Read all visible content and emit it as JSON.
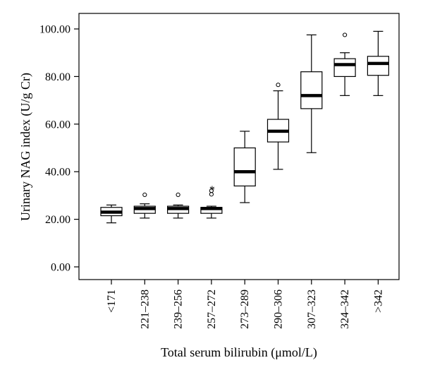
{
  "chart_data": {
    "type": "box",
    "xlabel": "Total serum bilirubin (μmol/L)",
    "ylabel": "Urinary NAG index (U/g Cr)",
    "ylim": [
      -5,
      105
    ],
    "yticks": [
      "0.00",
      "20.00",
      "40.00",
      "60.00",
      "80.00",
      "100.00"
    ],
    "ytick_values": [
      0,
      20,
      40,
      60,
      80,
      100
    ],
    "categories": [
      "<171",
      "221–238",
      "239–256",
      "257–272",
      "273–289",
      "290–306",
      "307–323",
      "324–342",
      ">342"
    ],
    "boxes": [
      {
        "min": 18.5,
        "q1": 21.5,
        "median": 23.0,
        "q3": 25.0,
        "max": 26.0,
        "outliers": [],
        "extremes": []
      },
      {
        "min": 20.5,
        "q1": 22.5,
        "median": 24.5,
        "q3": 25.5,
        "max": 26.5,
        "outliers": [
          30.3
        ],
        "extremes": []
      },
      {
        "min": 20.5,
        "q1": 22.5,
        "median": 24.5,
        "q3": 25.5,
        "max": 26.0,
        "outliers": [
          30.3
        ],
        "extremes": []
      },
      {
        "min": 20.5,
        "q1": 22.5,
        "median": 24.5,
        "q3": 25.0,
        "max": 25.5,
        "outliers": [
          30.5,
          32.0
        ],
        "extremes": [
          33.5
        ]
      },
      {
        "min": 27.0,
        "q1": 34.0,
        "median": 40.0,
        "q3": 50.0,
        "max": 57.0,
        "outliers": [],
        "extremes": []
      },
      {
        "min": 41.0,
        "q1": 52.5,
        "median": 57.0,
        "q3": 62.0,
        "max": 74.0,
        "outliers": [
          76.5
        ],
        "extremes": []
      },
      {
        "min": 48.0,
        "q1": 66.5,
        "median": 72.0,
        "q3": 82.0,
        "max": 97.5,
        "outliers": [],
        "extremes": []
      },
      {
        "min": 72.0,
        "q1": 80.0,
        "median": 85.0,
        "q3": 87.5,
        "max": 90.0,
        "outliers": [
          97.5
        ],
        "extremes": []
      },
      {
        "min": 72.0,
        "q1": 80.5,
        "median": 85.5,
        "q3": 88.5,
        "max": 99.0,
        "outliers": [],
        "extremes": []
      }
    ]
  }
}
